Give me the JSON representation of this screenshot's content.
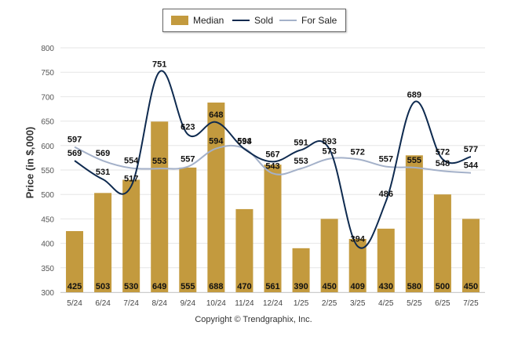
{
  "chart_data": {
    "type": "bar",
    "categories": [
      "5/24",
      "6/24",
      "7/24",
      "8/24",
      "9/24",
      "10/24",
      "11/24",
      "12/24",
      "1/25",
      "2/25",
      "3/25",
      "4/25",
      "5/25",
      "6/25",
      "7/25"
    ],
    "series": [
      {
        "name": "Median",
        "kind": "bar",
        "color": "#c39a3e",
        "values": [
          425,
          503,
          530,
          649,
          555,
          688,
          470,
          561,
          390,
          450,
          409,
          430,
          580,
          500,
          450
        ]
      },
      {
        "name": "Sold",
        "kind": "line",
        "color": "#0e2a4f",
        "values": [
          569,
          531,
          517,
          751,
          623,
          648,
          593,
          567,
          591,
          593,
          394,
          486,
          689,
          572,
          577
        ]
      },
      {
        "name": "For Sale",
        "kind": "line",
        "color": "#a4b1c9",
        "values": [
          597,
          569,
          554,
          553,
          557,
          594,
          594,
          543,
          553,
          573,
          572,
          557,
          555,
          548,
          544
        ]
      }
    ],
    "ylabel": "Price (in $,000)",
    "ylim": [
      300,
      800
    ],
    "yticks": [
      300,
      350,
      400,
      450,
      500,
      550,
      600,
      650,
      700,
      750,
      800
    ],
    "grid": true,
    "legend": "top-center"
  },
  "footer": {
    "copyright": "Copyright © Trendgraphix, Inc."
  }
}
